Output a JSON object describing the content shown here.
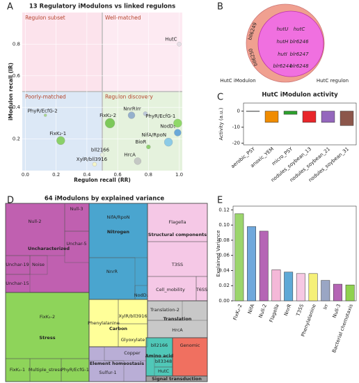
{
  "panel_letters": [
    "A",
    "B",
    "C",
    "D",
    "E"
  ],
  "chart_data": [
    {
      "type": "scatter",
      "title": "13 Regulatory iModulons vs linked regulons",
      "xlabel": "Regulon recall (RR)",
      "ylabel": "iModulon recall (IR)",
      "quadrants": [
        "Regulon subset",
        "Well-matched",
        "Poorly-matched",
        "Regulon discovery"
      ],
      "labels": [
        "HutC",
        "PhyR/EcfG-2",
        "FixK₂-2",
        "FixK₂-1",
        "bll2166",
        "XylR/bll3916",
        "NnrR",
        "Irr",
        "PhyR/EcfG-1",
        "NodD₁",
        "NifA/RpoN",
        "BioR",
        "HrcA"
      ],
      "x": [
        1.0,
        0.13,
        0.55,
        0.23,
        0.5,
        0.45,
        0.69,
        0.78,
        0.99,
        0.99,
        0.93,
        0.8,
        0.73
      ],
      "values": [
        0.8,
        0.35,
        0.3,
        0.19,
        0.1,
        0.04,
        0.35,
        0.36,
        0.3,
        0.24,
        0.18,
        0.15,
        0.06
      ],
      "sizes": [
        3,
        2,
        7,
        6,
        3,
        3,
        5,
        3,
        6,
        5,
        6,
        3,
        5
      ],
      "colors": [
        "#e8e0e8",
        "#a8d890",
        "#7dc95a",
        "#8ad06a",
        "#e8efe0",
        "#f5f5c8",
        "#95b0cc",
        "#bcc8d8",
        "#8fd868",
        "#6aa8d8",
        "#8ccbe6",
        "#8fd070",
        "#c4c8c4"
      ],
      "xlim": [
        -0.02,
        1.02
      ],
      "ylim": [
        0,
        1.0
      ],
      "xticks": [
        {
          "value": 0,
          "label": "0.0"
        },
        {
          "value": 0.2,
          "label": "0.2"
        },
        {
          "value": 0.4,
          "label": "0.4"
        },
        {
          "value": 0.6,
          "label": "0.6"
        },
        {
          "value": 0.8,
          "label": "0.8"
        },
        {
          "value": 1.0,
          "label": "1.0"
        }
      ],
      "yticks": [
        {
          "value": 0.2,
          "label": "0.2"
        },
        {
          "value": 0.4,
          "label": "0.4"
        },
        {
          "value": 0.6,
          "label": "0.6"
        },
        {
          "value": 0.8,
          "label": "0.8"
        }
      ]
    },
    {
      "type": "bar",
      "title": "HutC iModulon activity",
      "ylabel": "Activity (a.u.)",
      "categories": [
        "aerobic_PSY",
        "anoxic_YEM",
        "micro_PSY",
        "nodules_soybean_13",
        "nodules_soybean_21",
        "nodules_soybean_31"
      ],
      "values": [
        0,
        -7,
        -2,
        -7,
        -7,
        -9
      ],
      "colors": [
        "#4c72b0",
        "#f08c00",
        "#2ca02c",
        "#e8262a",
        "#9467bd",
        "#8c564b"
      ],
      "ylim": [
        -21,
        5
      ],
      "yticks": [
        -20,
        -10,
        0
      ]
    },
    {
      "type": "bar",
      "ylabel": "Explained Variance",
      "categories": [
        "FixK₂-2",
        "NifA",
        "Null-2",
        "Flagella",
        "NnrR",
        "T3SS",
        "Phenylalanine",
        "Irr",
        "Null-3",
        "Bacterial chemotaxis"
      ],
      "values": [
        0.115,
        0.098,
        0.092,
        0.041,
        0.038,
        0.036,
        0.036,
        0.027,
        0.022,
        0.021
      ],
      "colors": [
        "#9bd56c",
        "#6fa8dc",
        "#b565b5",
        "#f4b8d8",
        "#5ea9d6",
        "#f6c8e3",
        "#f5f078",
        "#9aa6c4",
        "#b565b5",
        "#8fd14f"
      ],
      "ylim": [
        0,
        0.125
      ],
      "yticks": [
        {
          "value": 0,
          "label": "0.00"
        },
        {
          "value": 0.02,
          "label": "0.02"
        },
        {
          "value": 0.04,
          "label": "0.04"
        },
        {
          "value": 0.06,
          "label": "0.06"
        },
        {
          "value": 0.08,
          "label": "0.08"
        },
        {
          "value": 0.1,
          "label": "0.10"
        },
        {
          "value": 0.12,
          "label": "0.12"
        }
      ]
    }
  ],
  "venn": {
    "left": "HutC iModulon",
    "right": "HutC regulon",
    "genes": [
      "hutU",
      "hutC",
      "hutH",
      "blr6246",
      "hutI",
      "blr6247",
      "blr6244",
      "blr6248"
    ],
    "arc_genes": [
      "bll6249",
      "bll6250"
    ]
  },
  "treemap": {
    "title": "64 iModulons by explained variance",
    "cells": [
      "Null-2",
      "Null-3",
      "Unchar-5",
      "Unchar-19",
      "Noise",
      "Unchar-15",
      "FixK₂-2",
      "FixK₂-1",
      "Multiple_stress",
      "PhyR/EcfG-1",
      "NifA/RpoN",
      "NnrR",
      "NodD₁",
      "Flagella",
      "T3SS",
      "Cell_mobility",
      "T6SS",
      "Phenylalanine",
      "XylR/bll3916",
      "Glyoxylate",
      "Translation-2",
      "HrcA",
      "Copper",
      "Sulfur-1",
      "bll2166",
      "bll3348",
      "HutC",
      "Genomic"
    ],
    "categories": [
      "Uncharacterized",
      "Stress",
      "Nitrogen",
      "Structural components",
      "Carbon",
      "Translation",
      "Element homeostasis",
      "Amino acid",
      "Signal transduction"
    ]
  }
}
